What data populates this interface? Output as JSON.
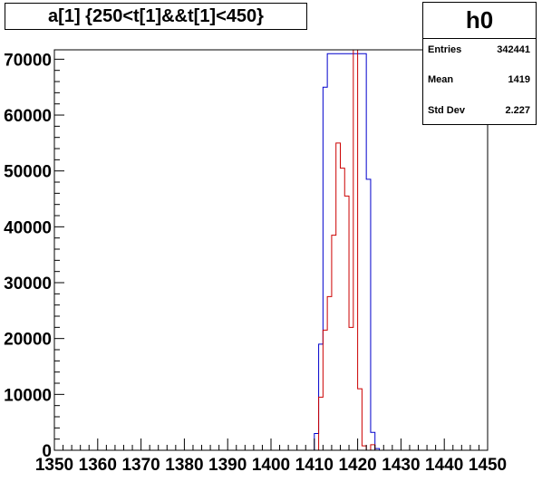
{
  "title": "a[1] {250<t[1]&&t[1]<450}",
  "stats": {
    "name": "h0",
    "rows": [
      {
        "label": "Entries",
        "value": "342441"
      },
      {
        "label": "Mean",
        "value": "1419"
      },
      {
        "label": "Std Dev",
        "value": "2.227"
      }
    ]
  },
  "colors": {
    "series1": "#0000cc",
    "series2": "#cc0000",
    "axis": "#000000"
  },
  "chart_data": {
    "type": "histogram",
    "title": "a[1] {250<t[1]&&t[1]<450}",
    "xlabel": "",
    "ylabel": "",
    "xlim": [
      1350,
      1450
    ],
    "ylim": [
      0,
      71000
    ],
    "bin_width": 1,
    "x_ticks": [
      1350,
      1360,
      1370,
      1380,
      1390,
      1400,
      1410,
      1420,
      1430,
      1440,
      1450
    ],
    "y_ticks": [
      0,
      10000,
      20000,
      30000,
      40000,
      50000,
      60000,
      70000
    ],
    "grid": false,
    "series": [
      {
        "color": "#0000cc",
        "bins": [
          {
            "x": 1410,
            "y": 3000
          },
          {
            "x": 1411,
            "y": 19000
          },
          {
            "x": 1412,
            "y": 65000
          },
          {
            "x": 1413,
            "y": 71000
          },
          {
            "x": 1414,
            "y": 71000
          },
          {
            "x": 1415,
            "y": 71000
          },
          {
            "x": 1416,
            "y": 71000
          },
          {
            "x": 1417,
            "y": 71000
          },
          {
            "x": 1418,
            "y": 71000
          },
          {
            "x": 1419,
            "y": 71000
          },
          {
            "x": 1420,
            "y": 71000
          },
          {
            "x": 1421,
            "y": 71000
          },
          {
            "x": 1422,
            "y": 48500
          },
          {
            "x": 1423,
            "y": 3200
          },
          {
            "x": 1424,
            "y": 300
          }
        ]
      },
      {
        "color": "#cc0000",
        "bins": [
          {
            "x": 1411,
            "y": 9500
          },
          {
            "x": 1412,
            "y": 21500
          },
          {
            "x": 1413,
            "y": 27500
          },
          {
            "x": 1414,
            "y": 38500
          },
          {
            "x": 1415,
            "y": 55000
          },
          {
            "x": 1416,
            "y": 50500
          },
          {
            "x": 1417,
            "y": 45500
          },
          {
            "x": 1418,
            "y": 22000
          },
          {
            "x": 1419,
            "y": 75000
          },
          {
            "x": 1420,
            "y": 11000
          },
          {
            "x": 1421,
            "y": 800
          },
          {
            "x": 1422,
            "y": 0
          },
          {
            "x": 1423,
            "y": 1000
          }
        ]
      }
    ]
  }
}
